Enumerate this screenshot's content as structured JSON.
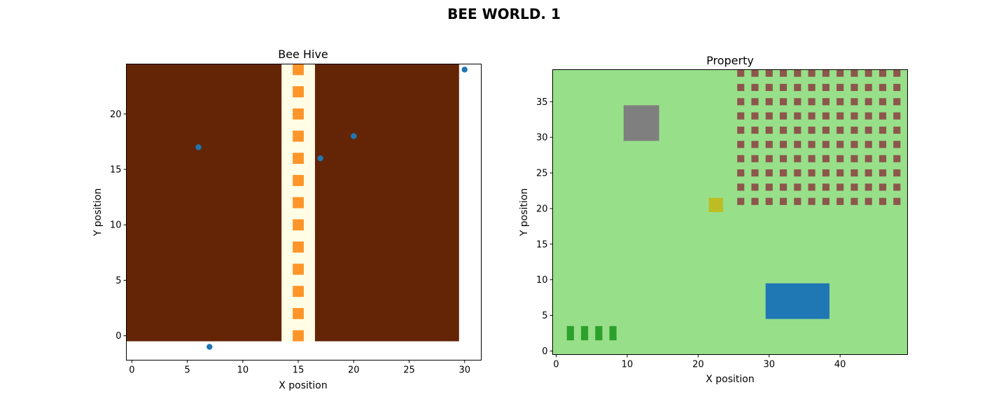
{
  "figure": {
    "suptitle": "BEE WORLD. 1"
  },
  "chart_data": [
    {
      "type": "heatmap",
      "title": "Bee Hive",
      "xlabel": "X position",
      "ylabel": "Y position",
      "xlim": [
        -0.5,
        31.5
      ],
      "ylim": [
        -2.2,
        24.5
      ],
      "xticks": [
        0,
        5,
        10,
        15,
        20,
        25,
        30
      ],
      "yticks": [
        0,
        5,
        10,
        15,
        20
      ],
      "grid": false,
      "cells": [
        {
          "x0": -0.5,
          "x1": 13.5,
          "y0": -0.5,
          "y1": 24.5,
          "color": "#632506"
        },
        {
          "x0": 16.5,
          "x1": 29.5,
          "y0": -0.5,
          "y1": 24.5,
          "color": "#632506"
        },
        {
          "x0": 13.5,
          "x1": 16.5,
          "y0": -0.5,
          "y1": 24.5,
          "color": "#fffde6"
        }
      ],
      "comb_cells": {
        "x": 15,
        "y": [
          0,
          2,
          4,
          6,
          8,
          10,
          12,
          14,
          16,
          18,
          20,
          22,
          24
        ],
        "color": "#fd952a"
      },
      "scatter": {
        "color": "#1f77b4",
        "x": [
          6,
          7,
          17,
          20,
          30
        ],
        "y": [
          17,
          -1,
          16,
          18,
          24
        ]
      }
    },
    {
      "type": "heatmap",
      "title": "Property",
      "xlabel": "X position",
      "ylabel": "Y position",
      "xlim": [
        -0.5,
        49.5
      ],
      "ylim": [
        -0.5,
        39.5
      ],
      "xticks": [
        0,
        10,
        20,
        30,
        40
      ],
      "yticks": [
        0,
        5,
        10,
        15,
        20,
        25,
        30,
        35
      ],
      "grid": false,
      "background_color": "#98df8a",
      "regions": [
        {
          "name": "stone",
          "x0": 9.5,
          "x1": 14.5,
          "y0": 29.5,
          "y1": 34.5,
          "color": "#7f7f7f"
        },
        {
          "name": "hive",
          "x0": 21.5,
          "x1": 23.5,
          "y0": 19.5,
          "y1": 21.5,
          "color": "#bcbd22"
        },
        {
          "name": "pond",
          "x0": 29.5,
          "x1": 38.5,
          "y0": 4.5,
          "y1": 9.5,
          "color": "#1f77b4"
        }
      ],
      "flowers": {
        "x": [
          2,
          4,
          6,
          8
        ],
        "y0": 1.5,
        "y1": 3.5,
        "color": "#2ca02c"
      },
      "trees": {
        "x": [
          26,
          28,
          30,
          32,
          34,
          36,
          38,
          40,
          42,
          44,
          46,
          48
        ],
        "y": [
          21,
          23,
          25,
          27,
          29,
          31,
          33,
          35,
          37,
          39
        ],
        "color": "#8c564b"
      }
    }
  ]
}
